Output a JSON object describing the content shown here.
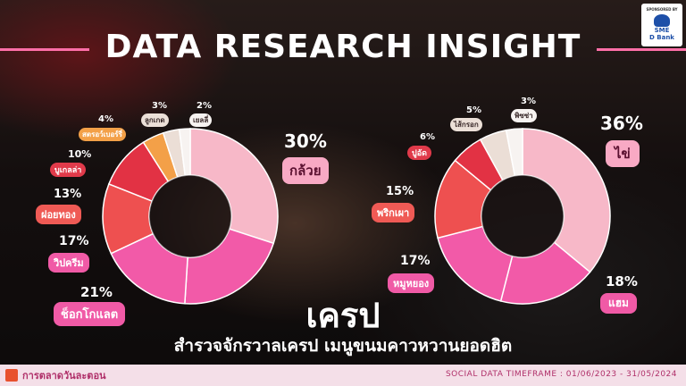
{
  "header": {
    "title": "DATA RESEARCH INSIGHT",
    "sponsor_top": "SPONSORED BY",
    "sponsor_name": "SME",
    "sponsor_sub": "D Bank"
  },
  "main_title": "เครป",
  "subtitle": "สำรวจจักรวาลเครป เมนูขนมคาวหวานยอดฮิต",
  "footer": {
    "brand": "การตลาดวันละตอน",
    "timeframe": "SOCIAL DATA TIMEFRAME : 01/06/2023 - 31/05/2024"
  },
  "colors": {
    "light_pink": "#f7b8c8",
    "hot_pink": "#f25aa8",
    "red": "#e23244",
    "coral": "#ee5050",
    "orange": "#f3a048",
    "cream": "#ebded6",
    "white": "#f7f3f1",
    "accent": "#ff6fa8"
  },
  "chart_data": [
    {
      "type": "pie",
      "variant": "donut",
      "slices": [
        {
          "label": "กล้วย",
          "value": 30,
          "display": "30%"
        },
        {
          "label": "ช็อกโกแลต",
          "value": 21,
          "display": "21%"
        },
        {
          "label": "วิปครีม",
          "value": 17,
          "display": "17%"
        },
        {
          "label": "ฝอยทอง",
          "value": 13,
          "display": "13%"
        },
        {
          "label": "บูเกลล่า",
          "value": 10,
          "display": "10%"
        },
        {
          "label": "สตรอว์เบอร์รี่",
          "value": 4,
          "display": "4%"
        },
        {
          "label": "ลูกเกด",
          "value": 3,
          "display": "3%"
        },
        {
          "label": "เยลลี่",
          "value": 2,
          "display": "2%"
        }
      ]
    },
    {
      "type": "pie",
      "variant": "donut",
      "slices": [
        {
          "label": "ไข่",
          "value": 36,
          "display": "36%"
        },
        {
          "label": "แฮม",
          "value": 18,
          "display": "18%"
        },
        {
          "label": "หมูหยอง",
          "value": 17,
          "display": "17%"
        },
        {
          "label": "พริกเผา",
          "value": 15,
          "display": "15%"
        },
        {
          "label": "ปูอัด",
          "value": 6,
          "display": "6%"
        },
        {
          "label": "ไส้กรอก",
          "value": 5,
          "display": "5%"
        },
        {
          "label": "พิซซ่า",
          "value": 3,
          "display": "3%"
        }
      ]
    }
  ]
}
